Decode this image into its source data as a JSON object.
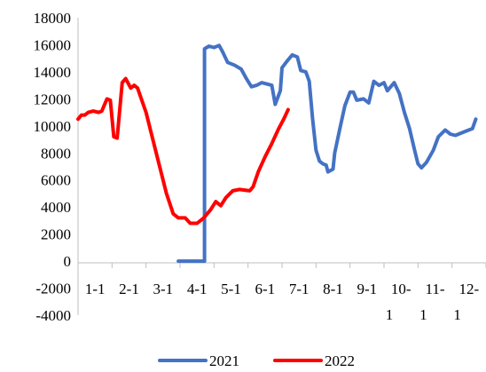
{
  "chart_data": {
    "type": "line",
    "title": "",
    "xlabel": "",
    "ylabel": "",
    "ylim": [
      -4000,
      18000
    ],
    "yticks": [
      -4000,
      -2000,
      0,
      2000,
      4000,
      6000,
      8000,
      10000,
      12000,
      14000,
      16000,
      18000
    ],
    "ytick_labels": [
      "-4000",
      "-2000",
      "0",
      "2000",
      "4000",
      "6000",
      "8000",
      "10000",
      "12000",
      "14000",
      "16000",
      "18000"
    ],
    "xlim": [
      0,
      12
    ],
    "x_unit": "month index (0 = Jan 1)",
    "xticks": [
      {
        "line1": "1-1",
        "line2": ""
      },
      {
        "line1": "2-1",
        "line2": ""
      },
      {
        "line1": "3-1",
        "line2": ""
      },
      {
        "line1": "4-1",
        "line2": ""
      },
      {
        "line1": "5-1",
        "line2": ""
      },
      {
        "line1": "6-1",
        "line2": ""
      },
      {
        "line1": "7-1",
        "line2": ""
      },
      {
        "line1": "8-1",
        "line2": ""
      },
      {
        "line1": "9-1",
        "line2": ""
      },
      {
        "line1": "10-",
        "line2": "1"
      },
      {
        "line1": "11-",
        "line2": "1"
      },
      {
        "line1": "12-",
        "line2": "1"
      }
    ],
    "legend": {
      "placement": "bottom"
    },
    "grid": false,
    "series": [
      {
        "name": "2021",
        "color": "#4472C4",
        "points": [
          [
            2.95,
            0
          ],
          [
            3.2,
            0
          ],
          [
            3.5,
            0
          ],
          [
            3.72,
            0
          ],
          [
            3.72,
            15700
          ],
          [
            3.85,
            15900
          ],
          [
            4.0,
            15800
          ],
          [
            4.15,
            15950
          ],
          [
            4.25,
            15500
          ],
          [
            4.4,
            14700
          ],
          [
            4.6,
            14500
          ],
          [
            4.8,
            14200
          ],
          [
            4.95,
            13500
          ],
          [
            5.1,
            12900
          ],
          [
            5.25,
            13000
          ],
          [
            5.4,
            13200
          ],
          [
            5.55,
            13100
          ],
          [
            5.7,
            13000
          ],
          [
            5.8,
            11600
          ],
          [
            5.95,
            12600
          ],
          [
            6.0,
            14300
          ],
          [
            6.15,
            14800
          ],
          [
            6.3,
            15250
          ],
          [
            6.45,
            15100
          ],
          [
            6.55,
            14100
          ],
          [
            6.7,
            14000
          ],
          [
            6.8,
            13300
          ],
          [
            6.9,
            10500
          ],
          [
            7.0,
            8200
          ],
          [
            7.1,
            7400
          ],
          [
            7.2,
            7200
          ],
          [
            7.3,
            7100
          ],
          [
            7.35,
            6600
          ],
          [
            7.5,
            6800
          ],
          [
            7.55,
            8000
          ],
          [
            7.7,
            9800
          ],
          [
            7.85,
            11500
          ],
          [
            8.0,
            12500
          ],
          [
            8.1,
            12500
          ],
          [
            8.2,
            11900
          ],
          [
            8.4,
            12000
          ],
          [
            8.55,
            11700
          ],
          [
            8.7,
            13300
          ],
          [
            8.85,
            13000
          ],
          [
            9.0,
            13200
          ],
          [
            9.1,
            12600
          ],
          [
            9.3,
            13200
          ],
          [
            9.45,
            12400
          ],
          [
            9.6,
            11000
          ],
          [
            9.75,
            9800
          ],
          [
            9.9,
            8200
          ],
          [
            10.0,
            7200
          ],
          [
            10.1,
            6900
          ],
          [
            10.25,
            7300
          ],
          [
            10.45,
            8200
          ],
          [
            10.6,
            9200
          ],
          [
            10.8,
            9700
          ],
          [
            10.95,
            9400
          ],
          [
            11.1,
            9300
          ],
          [
            11.3,
            9500
          ],
          [
            11.5,
            9700
          ],
          [
            11.6,
            9800
          ],
          [
            11.7,
            10500
          ]
        ]
      },
      {
        "name": "2022",
        "color": "#FF0000",
        "points": [
          [
            0.0,
            10500
          ],
          [
            0.1,
            10800
          ],
          [
            0.2,
            10800
          ],
          [
            0.3,
            11000
          ],
          [
            0.45,
            11100
          ],
          [
            0.6,
            11000
          ],
          [
            0.7,
            11100
          ],
          [
            0.85,
            12000
          ],
          [
            0.95,
            11900
          ],
          [
            1.05,
            9200
          ],
          [
            1.15,
            9100
          ],
          [
            1.3,
            13200
          ],
          [
            1.4,
            13500
          ],
          [
            1.55,
            12800
          ],
          [
            1.65,
            13000
          ],
          [
            1.75,
            12800
          ],
          [
            2.0,
            11000
          ],
          [
            2.2,
            9000
          ],
          [
            2.4,
            7000
          ],
          [
            2.6,
            5000
          ],
          [
            2.8,
            3500
          ],
          [
            2.95,
            3200
          ],
          [
            3.15,
            3200
          ],
          [
            3.3,
            2800
          ],
          [
            3.5,
            2800
          ],
          [
            3.7,
            3200
          ],
          [
            3.9,
            3800
          ],
          [
            4.05,
            4400
          ],
          [
            4.2,
            4100
          ],
          [
            4.35,
            4700
          ],
          [
            4.55,
            5200
          ],
          [
            4.75,
            5300
          ],
          [
            5.05,
            5200
          ],
          [
            5.15,
            5500
          ],
          [
            5.3,
            6600
          ],
          [
            5.5,
            7700
          ],
          [
            5.7,
            8700
          ],
          [
            5.9,
            9800
          ],
          [
            6.05,
            10500
          ],
          [
            6.18,
            11200
          ]
        ]
      }
    ]
  }
}
